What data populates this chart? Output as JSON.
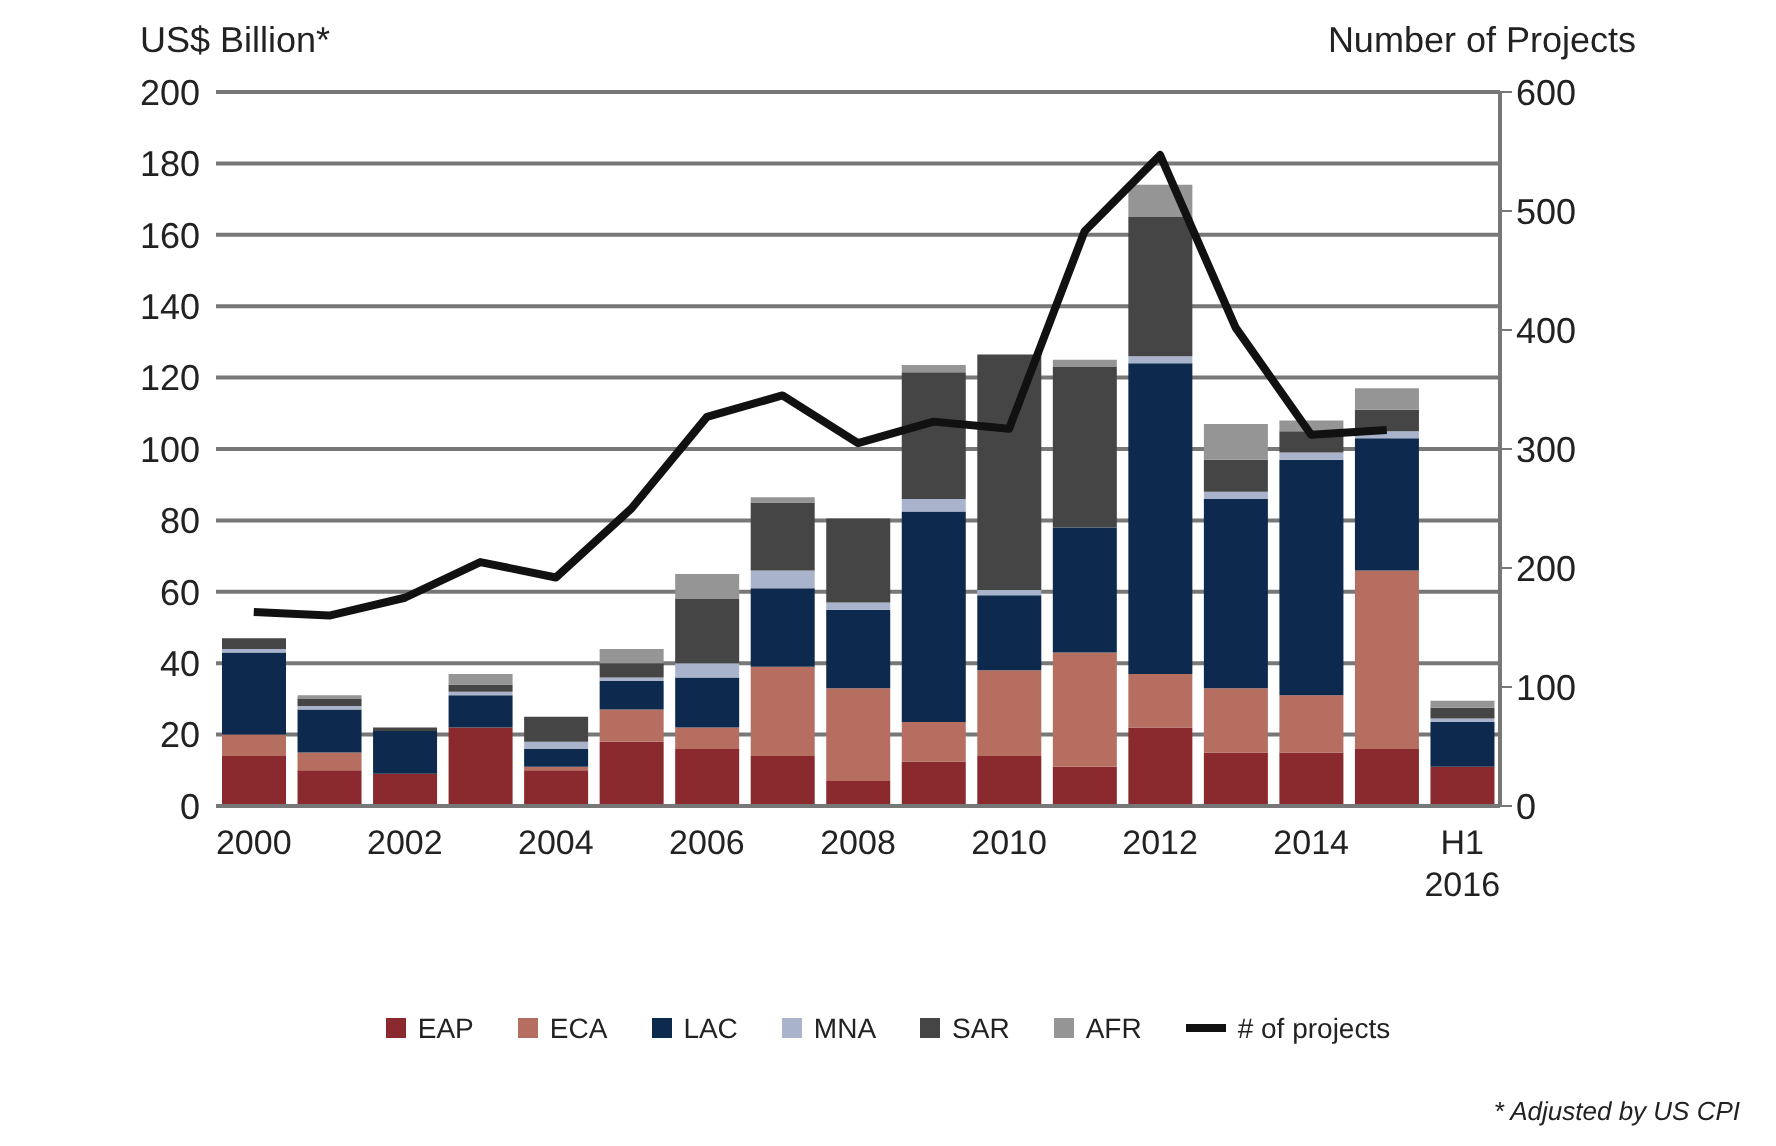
{
  "chart_data": {
    "type": "bar",
    "stacked": true,
    "ylabel": "US$ Billion*",
    "y2label": "Number of Projects",
    "categories": [
      "2000",
      null,
      "2002",
      null,
      "2004",
      null,
      "2006",
      null,
      "2008",
      null,
      "2010",
      null,
      "2012",
      null,
      "2014",
      null,
      "H1 2016"
    ],
    "series": [
      {
        "name": "EAP",
        "color": "#8b2a2e",
        "values": [
          14,
          10,
          9,
          22,
          10,
          18,
          16,
          14,
          7,
          12.5,
          14,
          11,
          22,
          15,
          15,
          16,
          11
        ]
      },
      {
        "name": "ECA",
        "color": "#b56e60",
        "values": [
          6,
          5,
          0,
          0,
          1,
          9,
          6,
          25,
          26,
          11,
          24,
          32,
          15,
          18,
          16,
          50,
          0
        ]
      },
      {
        "name": "LAC",
        "color": "#0d2a4e",
        "values": [
          23,
          12,
          12,
          9,
          5,
          8,
          14,
          22,
          22,
          59,
          21,
          35,
          87,
          53,
          66,
          37,
          12.5
        ]
      },
      {
        "name": "MNA",
        "color": "#a9b4cc",
        "values": [
          1,
          1,
          0,
          1,
          2,
          1,
          4,
          5,
          2,
          3.5,
          1.5,
          0,
          2,
          2,
          2,
          2,
          1
        ]
      },
      {
        "name": "SAR",
        "color": "#454545",
        "values": [
          3,
          2,
          1,
          2,
          7,
          4,
          18,
          19,
          23.5,
          35.5,
          66,
          45,
          39,
          9,
          6,
          6,
          3
        ]
      },
      {
        "name": "AFR",
        "color": "#959595",
        "values": [
          0,
          1,
          0,
          3,
          0,
          4,
          7,
          1.5,
          0,
          2,
          0,
          2,
          9,
          10,
          3,
          6,
          2
        ]
      },
      {
        "name": "# of projects",
        "type": "line",
        "axis": "y2",
        "color": "#111111",
        "marker": "none",
        "values": [
          163,
          160,
          175,
          205,
          192,
          250,
          327,
          345,
          305,
          323,
          317,
          483,
          547,
          402,
          312,
          316,
          null
        ]
      }
    ],
    "ylim": [
      0,
      200
    ],
    "yticks": [
      0,
      20,
      40,
      60,
      80,
      100,
      120,
      140,
      160,
      180,
      200
    ],
    "y2lim": [
      0,
      600
    ],
    "y2ticks": [
      0,
      100,
      200,
      300,
      400,
      500,
      600
    ],
    "grid": "y",
    "legend": "bottom",
    "annotations": [
      "* Adjusted by US CPI"
    ]
  }
}
